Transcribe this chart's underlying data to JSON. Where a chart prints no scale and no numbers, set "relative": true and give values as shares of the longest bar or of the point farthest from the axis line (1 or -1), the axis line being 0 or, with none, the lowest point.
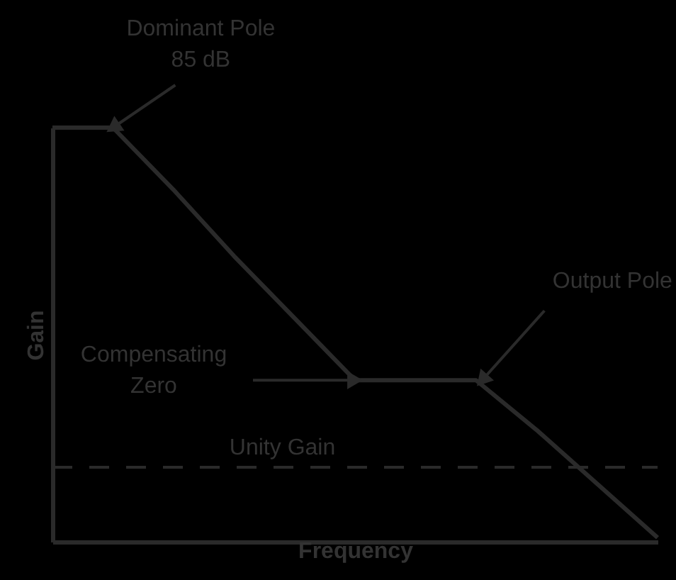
{
  "chart_data": {
    "type": "line",
    "relative": true,
    "xlabel": "Frequency",
    "ylabel": "Gain",
    "categories": [
      null,
      null,
      null,
      null,
      null,
      null,
      null,
      null,
      null,
      null,
      null
    ],
    "series": [
      {
        "color": "#2a2a2a",
        "values": [
          1,
          1,
          0.85,
          0.69,
          0.54,
          0.39,
          0.39,
          0.39,
          0.27,
          0.14,
          0.01
        ]
      }
    ],
    "tick_labels": false,
    "grid": false,
    "marker": "none",
    "line_style": "solid",
    "ref_lines": [
      {
        "axis": "y",
        "value": 0.18,
        "label": "Unity Gain",
        "color": "#2a2a2a",
        "line_style": "dashed"
      }
    ],
    "annotations": [
      "Dominant Pole\n85 dB",
      "Compensating\nZero",
      "Output Pole"
    ]
  }
}
